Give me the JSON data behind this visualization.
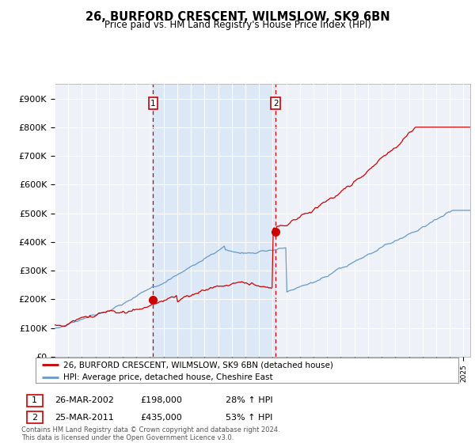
{
  "title": "26, BURFORD CRESCENT, WILMSLOW, SK9 6BN",
  "subtitle": "Price paid vs. HM Land Registry's House Price Index (HPI)",
  "xlim_start": 1995.0,
  "xlim_end": 2025.5,
  "ylim": [
    0,
    950000
  ],
  "yticks": [
    0,
    100000,
    200000,
    300000,
    400000,
    500000,
    600000,
    700000,
    800000,
    900000
  ],
  "ytick_labels": [
    "£0",
    "£100K",
    "£200K",
    "£300K",
    "£400K",
    "£500K",
    "£600K",
    "£700K",
    "£800K",
    "£900K"
  ],
  "sale1_x": 2002.23,
  "sale1_y": 198000,
  "sale1_label": "1",
  "sale1_date": "26-MAR-2002",
  "sale1_price": "£198,000",
  "sale1_hpi": "28% ↑ HPI",
  "sale2_x": 2011.23,
  "sale2_y": 435000,
  "sale2_label": "2",
  "sale2_date": "25-MAR-2011",
  "sale2_price": "£435,000",
  "sale2_hpi": "53% ↑ HPI",
  "hpi_color": "#6699cc",
  "price_color": "#cc0000",
  "dashed_color": "#cc0000",
  "shade_color": "#dce8f5",
  "bg_color": "#eef2f8",
  "plot_bg": "#ffffff",
  "legend_label_price": "26, BURFORD CRESCENT, WILMSLOW, SK9 6BN (detached house)",
  "legend_label_hpi": "HPI: Average price, detached house, Cheshire East",
  "footer": "Contains HM Land Registry data © Crown copyright and database right 2024.\nThis data is licensed under the Open Government Licence v3.0."
}
